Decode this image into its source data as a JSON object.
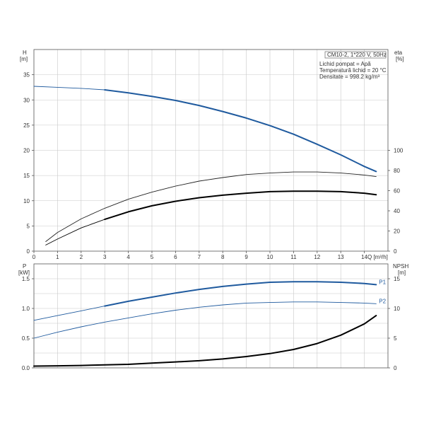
{
  "legend": {
    "model": "CM10-2, 1*220 V, 50Hz",
    "liquid": "Lichid pompat = Apă",
    "temperature": "Temperatură lichid = 20 °C",
    "density": "Densitate = 998.2 kg/m³"
  },
  "chart_data": [
    {
      "type": "line",
      "panel": "top",
      "x_axis": {
        "label": "Q [m³/h]",
        "range": [
          0,
          15
        ],
        "ticks": [
          0,
          1,
          2,
          3,
          4,
          5,
          6,
          7,
          8,
          9,
          10,
          11,
          12,
          13,
          14
        ]
      },
      "y_left": {
        "label_line1": "H",
        "label_line2": "[m]",
        "range": [
          0,
          40
        ],
        "ticks": [
          0,
          5,
          10,
          15,
          20,
          25,
          30,
          35
        ]
      },
      "y_right": {
        "label_line1": "eta",
        "label_line2": "[%]",
        "range": [
          0,
          200
        ],
        "ticks": [
          0,
          20,
          40,
          60,
          80,
          100
        ]
      },
      "grid": true,
      "series": [
        {
          "axis": "left",
          "color": "#1f5a9e",
          "style": "thin-then-thick",
          "thick_from_x": 3,
          "x": [
            0,
            1,
            2,
            3,
            4,
            5,
            6,
            7,
            8,
            9,
            10,
            11,
            12,
            13,
            14,
            14.5
          ],
          "y": [
            32.7,
            32.5,
            32.3,
            32.0,
            31.4,
            30.7,
            29.9,
            28.9,
            27.7,
            26.4,
            24.9,
            23.2,
            21.2,
            19.1,
            16.8,
            15.8
          ]
        },
        {
          "axis": "left",
          "color": "#222222",
          "style": "thin",
          "x": [
            0.5,
            1,
            2,
            3,
            4,
            5,
            6,
            7,
            8,
            9,
            10,
            11,
            12,
            13,
            14,
            14.5
          ],
          "y": [
            1.9,
            3.7,
            6.4,
            8.5,
            10.3,
            11.7,
            12.9,
            13.9,
            14.6,
            15.2,
            15.5,
            15.7,
            15.7,
            15.5,
            15.1,
            14.8
          ]
        },
        {
          "axis": "left",
          "color": "#000000",
          "style": "thin-then-thick",
          "thick_from_x": 3,
          "x": [
            0.5,
            1,
            2,
            3,
            4,
            5,
            6,
            7,
            8,
            9,
            10,
            11,
            12,
            13,
            14,
            14.5
          ],
          "y": [
            1.2,
            2.4,
            4.6,
            6.3,
            7.8,
            9.0,
            9.9,
            10.6,
            11.1,
            11.5,
            11.8,
            11.9,
            11.9,
            11.8,
            11.5,
            11.2
          ]
        }
      ]
    },
    {
      "type": "line",
      "panel": "bottom",
      "x_axis": {
        "range": [
          0,
          15
        ]
      },
      "y_left": {
        "label_line1": "P",
        "label_line2": "[kW]",
        "range": [
          0,
          1.75
        ],
        "ticks": [
          0.0,
          0.5,
          1.0,
          1.5
        ],
        "tick_labels": [
          "0.0",
          "0.5",
          "1.0",
          "1.5"
        ]
      },
      "y_right": {
        "label_line1": "NPSH",
        "label_line2": "[m]",
        "range": [
          0,
          17.5
        ],
        "ticks": [
          0,
          5,
          10,
          15
        ]
      },
      "grid": true,
      "series": [
        {
          "name": "P1",
          "axis": "left",
          "color": "#1f5a9e",
          "style": "thin-then-thick",
          "thick_from_x": 3,
          "x": [
            0,
            1,
            2,
            3,
            4,
            5,
            6,
            7,
            8,
            9,
            10,
            11,
            12,
            13,
            14,
            14.5
          ],
          "y": [
            0.8,
            0.88,
            0.96,
            1.04,
            1.12,
            1.19,
            1.26,
            1.32,
            1.37,
            1.41,
            1.44,
            1.45,
            1.45,
            1.44,
            1.42,
            1.4
          ]
        },
        {
          "name": "P2",
          "axis": "left",
          "color": "#1f5a9e",
          "style": "thin",
          "x": [
            0,
            1,
            2,
            3,
            4,
            5,
            6,
            7,
            8,
            9,
            10,
            11,
            12,
            13,
            14,
            14.5
          ],
          "y": [
            0.5,
            0.6,
            0.69,
            0.77,
            0.84,
            0.91,
            0.97,
            1.02,
            1.06,
            1.09,
            1.1,
            1.11,
            1.11,
            1.1,
            1.09,
            1.08
          ]
        },
        {
          "axis": "right",
          "color": "#000000",
          "style": "thick",
          "x": [
            0,
            1,
            2,
            3,
            4,
            5,
            6,
            7,
            8,
            9,
            10,
            11,
            12,
            13,
            14,
            14.5
          ],
          "y": [
            0.3,
            0.35,
            0.4,
            0.5,
            0.6,
            0.8,
            1.0,
            1.2,
            1.5,
            1.9,
            2.4,
            3.1,
            4.1,
            5.5,
            7.4,
            8.8
          ]
        }
      ]
    }
  ]
}
